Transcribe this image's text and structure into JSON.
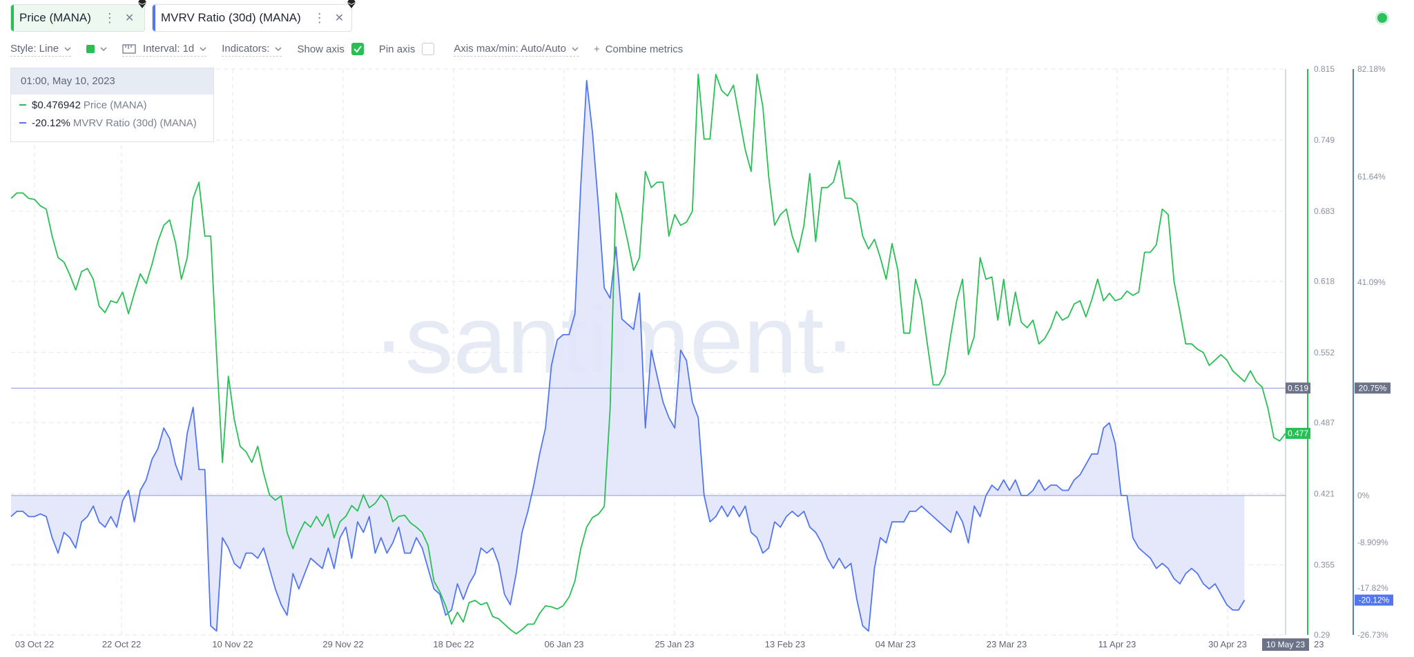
{
  "tabs": [
    {
      "label": "Price (MANA)",
      "color": "#26c053"
    },
    {
      "label": "MVRV Ratio (30d) (MANA)",
      "color": "#5275f0"
    }
  ],
  "icons": {
    "tab_icon": "ethereum-icon",
    "status": "live-status-dot"
  },
  "toolbar": {
    "style_label": "Style: Line",
    "interval_label": "Interval: 1d",
    "indicators_label": "Indicators:",
    "show_axis_label": "Show axis",
    "show_axis_checked": true,
    "pin_axis_label": "Pin axis",
    "pin_axis_checked": false,
    "axis_maxmin_label": "Axis max/min: Auto/Auto",
    "combine_label": "Combine metrics",
    "color_swatch": "#26c053"
  },
  "tooltip": {
    "date": "01:00, May 10, 2023",
    "price_value": "$0.476942",
    "price_name": "Price (MANA)",
    "mvrv_value": "-20.12%",
    "mvrv_name": "MVRV Ratio (30d) (MANA)"
  },
  "watermark": "·santiment·",
  "chart_data": {
    "type": "line",
    "x_tick_labels": [
      "03 Oct 22",
      "22 Oct 22",
      "10 Nov 22",
      "29 Nov 22",
      "18 Dec 22",
      "06 Jan 23",
      "25 Jan 23",
      "13 Feb 23",
      "04 Mar 23",
      "23 Mar 23",
      "11 Apr 23",
      "30 Apr 23"
    ],
    "x_cursor_label": "10 May 23",
    "x_cursor_label_suffix": "23",
    "price_axis": {
      "ticks": [
        "0.815",
        "0.749",
        "0.683",
        "0.618",
        "0.552",
        "0.487",
        "0.421",
        "0.355",
        "0.29"
      ],
      "ylim": [
        0.29,
        0.815
      ],
      "crosshair_label": "0.519",
      "current_label": "0.477"
    },
    "mvrv_axis": {
      "ticks": [
        "82.18%",
        "61.64%",
        "41.09%",
        "0%",
        "-8.909%",
        "-17.82%",
        "-26.73%"
      ],
      "crosshair_label": "20.75%",
      "current_label": "-20.12%"
    },
    "series": [
      {
        "name": "Price (MANA)",
        "color": "#26c053",
        "values": [
          0.695,
          0.7,
          0.7,
          0.695,
          0.694,
          0.688,
          0.685,
          0.66,
          0.64,
          0.636,
          0.624,
          0.61,
          0.627,
          0.63,
          0.62,
          0.595,
          0.589,
          0.6,
          0.598,
          0.608,
          0.588,
          0.607,
          0.625,
          0.616,
          0.634,
          0.655,
          0.67,
          0.675,
          0.654,
          0.62,
          0.64,
          0.695,
          0.71,
          0.66,
          0.66,
          0.55,
          0.45,
          0.53,
          0.49,
          0.465,
          0.46,
          0.45,
          0.465,
          0.44,
          0.42,
          0.415,
          0.419,
          0.385,
          0.37,
          0.384,
          0.395,
          0.39,
          0.4,
          0.391,
          0.402,
          0.38,
          0.395,
          0.4,
          0.41,
          0.405,
          0.42,
          0.408,
          0.412,
          0.42,
          0.414,
          0.395,
          0.4,
          0.401,
          0.394,
          0.39,
          0.385,
          0.373,
          0.34,
          0.33,
          0.317,
          0.3,
          0.311,
          0.302,
          0.32,
          0.322,
          0.318,
          0.32,
          0.307,
          0.305,
          0.3,
          0.295,
          0.291,
          0.295,
          0.3,
          0.3,
          0.31,
          0.317,
          0.316,
          0.314,
          0.317,
          0.325,
          0.34,
          0.37,
          0.39,
          0.399,
          0.402,
          0.409,
          0.5,
          0.7,
          0.68,
          0.655,
          0.628,
          0.64,
          0.72,
          0.705,
          0.71,
          0.71,
          0.66,
          0.68,
          0.67,
          0.673,
          0.683,
          0.81,
          0.75,
          0.75,
          0.81,
          0.795,
          0.79,
          0.8,
          0.77,
          0.74,
          0.72,
          0.81,
          0.78,
          0.715,
          0.67,
          0.68,
          0.685,
          0.66,
          0.645,
          0.67,
          0.718,
          0.655,
          0.705,
          0.705,
          0.71,
          0.73,
          0.695,
          0.695,
          0.69,
          0.66,
          0.648,
          0.657,
          0.64,
          0.62,
          0.653,
          0.628,
          0.57,
          0.57,
          0.62,
          0.6,
          0.56,
          0.522,
          0.522,
          0.532,
          0.568,
          0.6,
          0.62,
          0.55,
          0.567,
          0.64,
          0.62,
          0.622,
          0.582,
          0.62,
          0.577,
          0.608,
          0.58,
          0.575,
          0.582,
          0.56,
          0.565,
          0.575,
          0.59,
          0.582,
          0.585,
          0.597,
          0.6,
          0.585,
          0.601,
          0.62,
          0.6,
          0.607,
          0.6,
          0.602,
          0.609,
          0.605,
          0.608,
          0.645,
          0.645,
          0.652,
          0.685,
          0.68,
          0.618,
          0.59,
          0.56,
          0.56,
          0.555,
          0.552,
          0.54,
          0.545,
          0.55,
          0.545,
          0.535,
          0.53,
          0.525,
          0.535,
          0.525,
          0.52,
          0.5,
          0.473,
          0.47,
          0.477
        ]
      },
      {
        "name": "MVRV Ratio (30d) (MANA)",
        "color": "#5275f0",
        "fill": "#e2e6fb",
        "values": [
          -4,
          -3,
          -3,
          -4,
          -4,
          -3.5,
          -4,
          -8,
          -11,
          -7,
          -8,
          -10,
          -5,
          -4,
          -2,
          -5,
          -6,
          -4,
          -6,
          -1,
          1,
          -5,
          1,
          3,
          7,
          9,
          13,
          11,
          6,
          3,
          12,
          17,
          5,
          5,
          -25,
          -26,
          -8,
          -10,
          -13,
          -14,
          -11,
          -11,
          -12,
          -10,
          -14,
          -18,
          -21,
          -23,
          -15,
          -18,
          -15,
          -12,
          -13,
          -14,
          -10,
          -14,
          -8,
          -6,
          -12,
          -5,
          -7,
          -4,
          -11,
          -8,
          -11,
          -9,
          -6,
          -11,
          -11,
          -8,
          -10,
          -14,
          -18,
          -19,
          -23,
          -22,
          -17,
          -20,
          -17,
          -15,
          -10,
          -11,
          -10,
          -13,
          -19,
          -21,
          -15,
          -7,
          -3,
          2,
          8,
          13,
          25,
          30,
          31,
          31,
          35,
          60,
          80,
          70,
          56,
          40,
          38,
          48,
          34,
          33,
          32,
          39,
          13,
          28,
          23,
          18,
          15,
          13,
          28,
          26,
          18,
          15,
          0,
          -5,
          -4,
          -2,
          -4,
          -2,
          -4,
          -2,
          -7,
          -8,
          -11,
          -10,
          -5,
          -6,
          -4,
          -3,
          -4,
          -3,
          -6,
          -7,
          -9,
          -12,
          -14,
          -12,
          -14,
          -13,
          -20,
          -25,
          -26,
          -14,
          -8,
          -9,
          -5,
          -5,
          -5,
          -3,
          -3,
          -2,
          -3,
          -4,
          -5,
          -6,
          -7,
          -3,
          -5,
          -9,
          -2,
          -4,
          0,
          2,
          1,
          3,
          1,
          3,
          0,
          0,
          1,
          3,
          1,
          2,
          2,
          1,
          1,
          3,
          4,
          6,
          8,
          8,
          13,
          14,
          10,
          0,
          0,
          -8,
          -10,
          -11,
          -12,
          -14,
          -13,
          -14,
          -16,
          -17,
          -15,
          -14,
          -15,
          -17,
          -18,
          -17,
          -19,
          -21,
          -22,
          -22,
          -20.12
        ]
      }
    ]
  }
}
